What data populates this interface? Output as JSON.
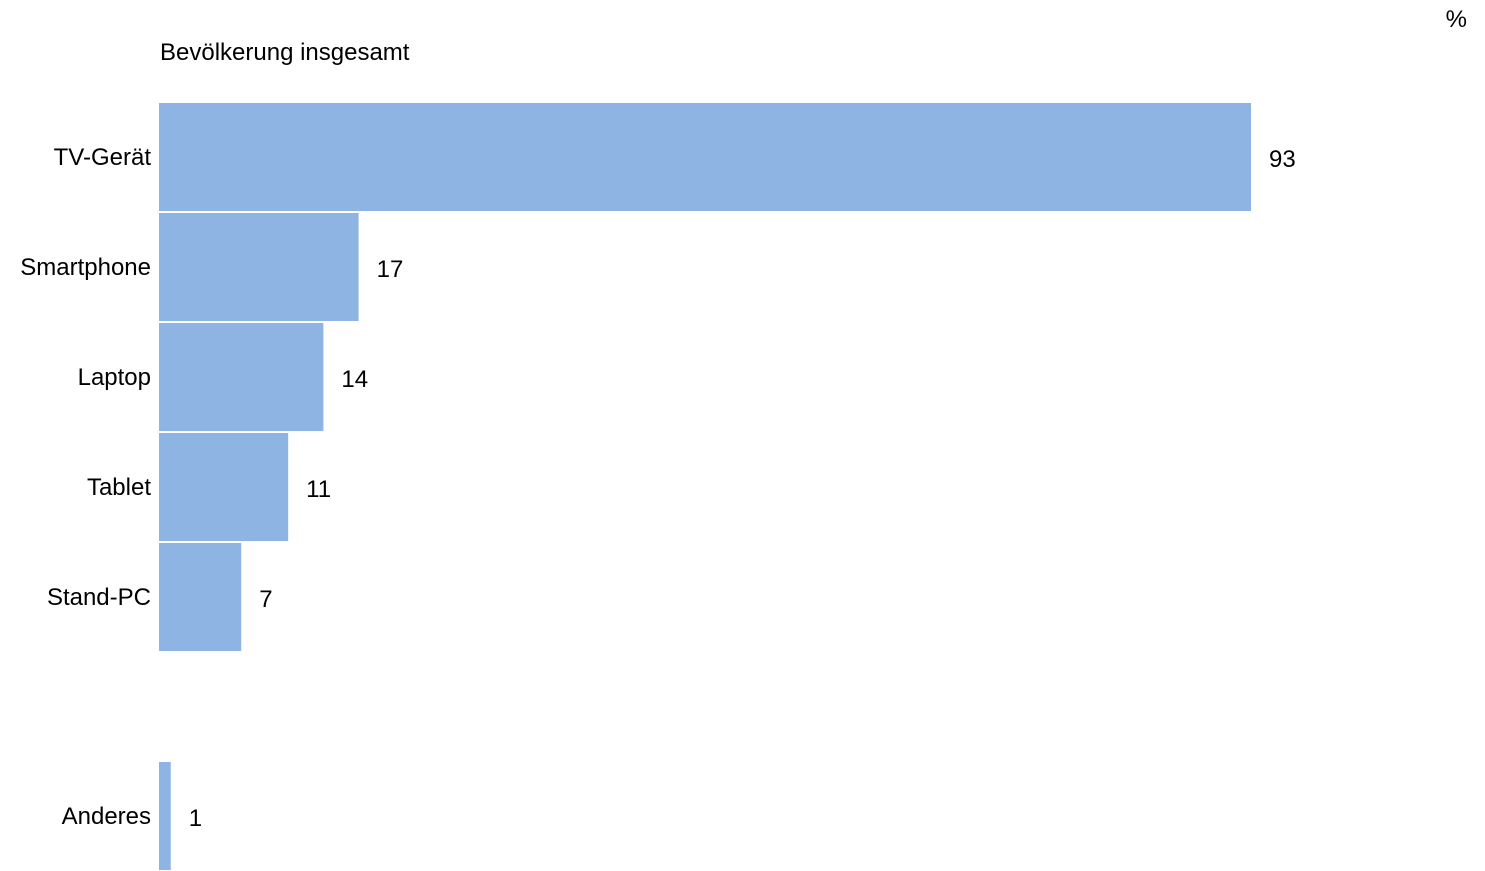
{
  "chart_data": {
    "type": "bar",
    "orientation": "horizontal",
    "title": "Bevölkerung insgesamt",
    "unit": "%",
    "categories": [
      "TV-Gerät",
      "Smartphone",
      "Laptop",
      "Tablet",
      "Stand-PC",
      "Anderes"
    ],
    "values": [
      93,
      17,
      14,
      11,
      7,
      1
    ],
    "xlim": [
      0,
      100
    ],
    "grid": false,
    "legend": "none",
    "bar_color": "#8eb4e3"
  }
}
